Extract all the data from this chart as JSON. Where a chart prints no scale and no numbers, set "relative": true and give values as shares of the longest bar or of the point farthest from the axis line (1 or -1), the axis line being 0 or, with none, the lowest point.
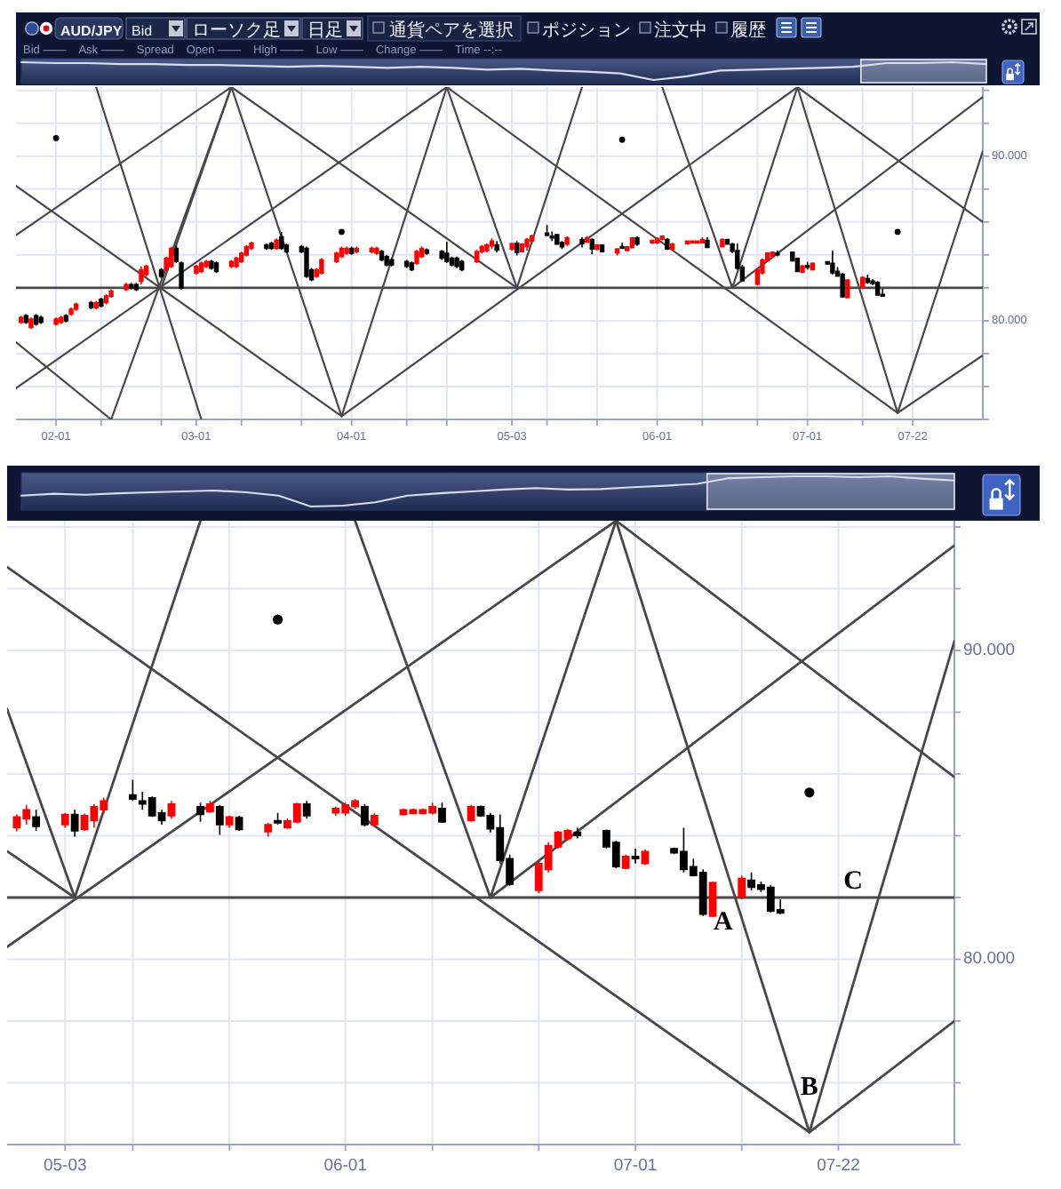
{
  "chart_data": [
    {
      "type": "line",
      "relative": true,
      "categories": [
        null,
        null,
        null,
        null,
        null,
        null,
        null,
        null,
        null,
        null,
        null,
        null,
        null,
        null,
        null,
        null,
        null,
        null,
        null,
        null,
        null,
        null,
        null,
        null,
        null,
        null,
        null,
        null,
        null,
        null
      ],
      "values": [
        1,
        0.95,
        0.95,
        0.89,
        0.89,
        0.84,
        0.84,
        0.79,
        0.74,
        0.79,
        0.74,
        0.68,
        0.74,
        0.68,
        0.58,
        0.63,
        0.53,
        0.47,
        0.37,
        0,
        0.21,
        0.53,
        0.58,
        0.63,
        0.68,
        0.74,
        0.95,
        0.95,
        1,
        0.89
      ],
      "color": "#d9dde8",
      "annotations": [
        "AUD/JPY",
        "Bid",
        "ローソク足",
        "日足",
        "通貨ペアを選択",
        "ポジション",
        "注文中",
        "履歴",
        "Bid ——",
        "Ask ——",
        "Spread",
        "Open ——",
        "High ——",
        "Low ——",
        "Change ——",
        "Time --:--"
      ]
    },
    {
      "type": "candlestick",
      "x": [
        "--01-25",
        "--01-26",
        "--01-27",
        "--01-28",
        "--01-29",
        "--02-01",
        "--02-02",
        "--02-03",
        "--02-04",
        "--02-05",
        "--02-08",
        "--02-09",
        "--02-10",
        "--02-11",
        "--02-12",
        "--02-15",
        "--02-16",
        "--02-17",
        "--02-18",
        "--02-19",
        "--02-22",
        "--02-23",
        "--02-24",
        "--02-25",
        "--02-26",
        "--03-01",
        "--03-02",
        "--03-03",
        "--03-04",
        "--03-05",
        "--03-08",
        "--03-09",
        "--03-10",
        "--03-11",
        "--03-12",
        "--03-15",
        "--03-16",
        "--03-17",
        "--03-18",
        "--03-19",
        "--03-22",
        "--03-23",
        "--03-24",
        "--03-25",
        "--03-26",
        "--03-29",
        "--03-30",
        "--03-31",
        "--04-01",
        "--04-02",
        "--04-05",
        "--04-06",
        "--04-07",
        "--04-08",
        "--04-09",
        "--04-12",
        "--04-13",
        "--04-14",
        "--04-15",
        "--04-16",
        "--04-19",
        "--04-20",
        "--04-21",
        "--04-22",
        "--04-23",
        "--04-26",
        "--04-27",
        "--04-28",
        "--04-29",
        "--04-30",
        "--05-03",
        "--05-04",
        "--05-05",
        "--05-06",
        "--05-07",
        "--05-10",
        "--05-11",
        "--05-12",
        "--05-13",
        "--05-14",
        "--05-17",
        "--05-18",
        "--05-19",
        "--05-20",
        "--05-21",
        "--05-24",
        "--05-25",
        "--05-26",
        "--05-27",
        "--05-28",
        "--05-31",
        "--06-01",
        "--06-02",
        "--06-03",
        "--06-04",
        "--06-07",
        "--06-08",
        "--06-09",
        "--06-10",
        "--06-11",
        "--06-14",
        "--06-15",
        "--06-16",
        "--06-17",
        "--06-18",
        "--06-21",
        "--06-22",
        "--06-23",
        "--06-24",
        "--06-25",
        "--06-28",
        "--06-29",
        "--06-30",
        "--07-01",
        "--07-02",
        "--07-05",
        "--07-06",
        "--07-07",
        "--07-08",
        "--07-09",
        "--07-12",
        "--07-13",
        "--07-14",
        "--07-15",
        "--07-16"
      ],
      "ohlc": [
        [
          79.9,
          80.3,
          79.8,
          80.2
        ],
        [
          80.3,
          80.4,
          79.8,
          79.9
        ],
        [
          79.6,
          80.2,
          79.5,
          80.1
        ],
        [
          80.3,
          80.4,
          79.7,
          79.8
        ],
        [
          80.2,
          80.3,
          79.8,
          79.9
        ],
        [
          79.8,
          80.2,
          79.7,
          80.1
        ],
        [
          79.9,
          80.3,
          79.8,
          80.2
        ],
        [
          80.3,
          80.4,
          79.9,
          80.0
        ],
        [
          80.4,
          80.8,
          80.3,
          80.7
        ],
        [
          80.7,
          81.1,
          80.6,
          81.0
        ],
        [
          81.1,
          81.2,
          80.7,
          80.8
        ],
        [
          80.8,
          81.2,
          80.7,
          81.1
        ],
        [
          81.3,
          81.4,
          80.8,
          80.9
        ],
        [
          81.1,
          81.6,
          81.0,
          81.5
        ],
        [
          81.5,
          81.9,
          81.4,
          81.8
        ],
        [
          81.9,
          82.3,
          81.8,
          82.2
        ],
        [
          82.2,
          82.3,
          81.9,
          82.0
        ],
        [
          82.2,
          82.3,
          81.8,
          81.9
        ],
        [
          82.4,
          83.3,
          82.2,
          83.1
        ],
        [
          82.8,
          83.4,
          82.7,
          83.3
        ],
        [
          83.1,
          83.2,
          82.6,
          82.7
        ],
        [
          83.1,
          83.9,
          83.0,
          83.8
        ],
        [
          83.3,
          84.5,
          83.2,
          84.4
        ],
        [
          84.4,
          84.6,
          83.5,
          83.6
        ],
        [
          83.5,
          83.6,
          81.9,
          82.0
        ],
        [
          82.9,
          83.4,
          82.8,
          83.3
        ],
        [
          83.0,
          83.6,
          82.9,
          83.5
        ],
        [
          83.3,
          83.7,
          83.2,
          83.6
        ],
        [
          83.6,
          83.7,
          83.1,
          83.2
        ],
        [
          83.5,
          83.6,
          82.9,
          83.0
        ],
        [
          83.3,
          83.7,
          83.2,
          83.6
        ],
        [
          83.3,
          83.9,
          83.2,
          83.8
        ],
        [
          83.6,
          84.2,
          83.5,
          84.1
        ],
        [
          84.0,
          84.6,
          83.9,
          84.5
        ],
        [
          84.4,
          84.8,
          84.3,
          84.7
        ],
        [
          84.6,
          84.7,
          84.3,
          84.4
        ],
        [
          84.7,
          84.8,
          84.3,
          84.4
        ],
        [
          84.4,
          85.0,
          84.3,
          84.9
        ],
        [
          85.1,
          85.4,
          84.3,
          84.4
        ],
        [
          84.6,
          84.7,
          84.1,
          84.2
        ],
        [
          84.5,
          84.6,
          84.1,
          84.2
        ],
        [
          84.4,
          84.5,
          82.6,
          82.7
        ],
        [
          83.1,
          83.2,
          82.4,
          82.5
        ],
        [
          82.7,
          83.2,
          82.6,
          83.1
        ],
        [
          82.9,
          83.8,
          82.8,
          83.7
        ],
        [
          83.6,
          84.2,
          83.5,
          84.1
        ],
        [
          83.9,
          84.5,
          83.8,
          84.4
        ],
        [
          84.1,
          84.5,
          84.0,
          84.4
        ],
        [
          84.4,
          84.5,
          84.0,
          84.1
        ],
        [
          84.2,
          84.5,
          84.1,
          84.4
        ],
        [
          84.2,
          84.5,
          84.1,
          84.4
        ],
        [
          84.1,
          84.5,
          84.0,
          84.4
        ],
        [
          84.2,
          84.3,
          83.6,
          83.7
        ],
        [
          83.9,
          84.0,
          83.3,
          83.4
        ],
        [
          83.7,
          83.8,
          83.3,
          83.4
        ],
        [
          83.6,
          83.7,
          83.2,
          83.3
        ],
        [
          83.5,
          83.6,
          83.0,
          83.1
        ],
        [
          83.5,
          84.3,
          83.4,
          84.2
        ],
        [
          83.9,
          84.5,
          83.8,
          84.4
        ],
        [
          84.3,
          84.4,
          84.0,
          84.1
        ],
        [
          84.2,
          84.3,
          83.7,
          83.8
        ],
        [
          84.1,
          84.8,
          83.5,
          83.6
        ],
        [
          83.8,
          83.9,
          83.3,
          83.4
        ],
        [
          83.8,
          83.9,
          83.2,
          83.3
        ],
        [
          83.6,
          83.7,
          83.0,
          83.1
        ],
        [
          83.6,
          84.3,
          83.5,
          84.2
        ],
        [
          84.2,
          84.6,
          84.1,
          84.5
        ],
        [
          84.26,
          84.69,
          84.14,
          84.61
        ],
        [
          84.55,
          85.0,
          84.36,
          84.84
        ],
        [
          84.61,
          84.84,
          84.16,
          84.3
        ],
        [
          84.36,
          84.74,
          84.26,
          84.69
        ],
        [
          84.69,
          84.84,
          83.97,
          84.16
        ],
        [
          84.2,
          84.72,
          84.16,
          84.65
        ],
        [
          84.49,
          85.03,
          84.26,
          84.94
        ],
        [
          84.84,
          85.23,
          84.74,
          85.13
        ],
        [
          85.32,
          85.81,
          85.13,
          85.19
        ],
        [
          85.13,
          85.42,
          84.84,
          85.03
        ],
        [
          85.23,
          85.27,
          84.61,
          84.65
        ],
        [
          84.74,
          84.84,
          84.36,
          84.49
        ],
        [
          84.65,
          85.13,
          84.55,
          85.03
        ],
        [
          84.94,
          85.07,
          84.45,
          84.69
        ],
        [
          84.78,
          85.13,
          84.74,
          85.03
        ],
        [
          84.94,
          85.0,
          84.03,
          84.36
        ],
        [
          84.36,
          84.65,
          84.26,
          84.61
        ],
        [
          84.59,
          84.65,
          84.16,
          84.2
        ],
        [
          84.13,
          84.42,
          83.97,
          84.36
        ],
        [
          84.49,
          84.74,
          84.36,
          84.42
        ],
        [
          84.26,
          84.55,
          84.22,
          84.49
        ],
        [
          84.45,
          85.07,
          84.4,
          85.03
        ],
        [
          85.03,
          85.13,
          84.55,
          84.65
        ],
        [
          84.74,
          84.94,
          84.65,
          84.88
        ],
        [
          84.74,
          85.07,
          84.65,
          85.0
        ],
        [
          84.94,
          85.19,
          84.88,
          85.13
        ],
        [
          84.94,
          85.03,
          84.3,
          84.36
        ],
        [
          84.36,
          84.74,
          84.3,
          84.65
        ],
        [
          84.69,
          84.88,
          84.65,
          84.84
        ],
        [
          84.72,
          84.88,
          84.69,
          84.84
        ],
        [
          84.72,
          84.88,
          84.69,
          84.84
        ],
        [
          84.74,
          85.07,
          84.69,
          84.94
        ],
        [
          84.88,
          85.07,
          84.42,
          84.45
        ],
        [
          84.49,
          85.0,
          84.45,
          84.94
        ],
        [
          84.94,
          84.98,
          84.61,
          84.65
        ],
        [
          84.65,
          84.74,
          84.11,
          84.22
        ],
        [
          84.26,
          84.69,
          83.1,
          83.2
        ],
        [
          83.26,
          83.39,
          82.37,
          82.43
        ],
        [
          82.23,
          83.2,
          82.14,
          83.1
        ],
        [
          82.91,
          83.78,
          82.81,
          83.68
        ],
        [
          83.64,
          84.16,
          83.58,
          84.11
        ],
        [
          83.91,
          84.22,
          83.85,
          84.16
        ],
        [
          84.11,
          84.26,
          83.91,
          84.01
        ],
        [
          84.16,
          84.2,
          83.58,
          83.64
        ],
        [
          83.78,
          83.84,
          82.95,
          83.0
        ],
        [
          82.95,
          83.39,
          82.91,
          83.33
        ],
        [
          83.33,
          83.58,
          83.1,
          83.26
        ],
        [
          83.1,
          83.55,
          83.05,
          83.49
        ],
        [
          83.58,
          83.62,
          83.4,
          83.45
        ],
        [
          83.49,
          84.26,
          82.81,
          82.91
        ],
        [
          83.0,
          83.26,
          82.68,
          82.71
        ],
        [
          82.81,
          82.91,
          81.4,
          81.46
        ],
        [
          81.4,
          82.52,
          81.36,
          82.48
        ],
        [
          82.04,
          82.71,
          81.94,
          82.62
        ],
        [
          82.56,
          82.81,
          82.23,
          82.33
        ],
        [
          82.41,
          82.52,
          82.17,
          82.27
        ],
        [
          82.33,
          82.41,
          81.52,
          81.56
        ],
        [
          81.6,
          81.94,
          81.46,
          81.5
        ]
      ],
      "colors": [
        "#ff0000",
        "#000000",
        "#ff0000",
        "#000000",
        "#000000",
        "#ff0000",
        "#ff0000",
        "#000000",
        "#ff0000",
        "#ff0000",
        "#000000",
        "#ff0000",
        "#000000",
        "#ff0000",
        "#ff0000",
        "#ff0000",
        "#000000",
        "#000000",
        "#ff0000",
        "#ff0000",
        "#000000",
        "#ff0000",
        "#ff0000",
        "#000000",
        "#000000",
        "#ff0000",
        "#ff0000",
        "#ff0000",
        "#000000",
        "#000000",
        "#ff0000",
        "#ff0000",
        "#ff0000",
        "#ff0000",
        "#ff0000",
        "#000000",
        "#000000",
        "#ff0000",
        "#000000",
        "#000000",
        "#000000",
        "#000000",
        "#000000",
        "#ff0000",
        "#ff0000",
        "#ff0000",
        "#ff0000",
        "#ff0000",
        "#000000",
        "#ff0000",
        "#ff0000",
        "#ff0000",
        "#000000",
        "#000000",
        "#000000",
        "#000000",
        "#000000",
        "#ff0000",
        "#ff0000",
        "#000000",
        "#000000",
        "#000000",
        "#000000",
        "#000000",
        "#000000",
        "#ff0000",
        "#ff0000",
        "#ff0000",
        "#ff0000",
        "#000000",
        "#ff0000",
        "#000000",
        "#ff0000",
        "#ff0000",
        "#ff0000",
        "#000000",
        "#000000",
        "#000000",
        "#000000",
        "#ff0000",
        "#000000",
        "#ff0000",
        "#000000",
        "#ff0000",
        "#000000",
        "#ff0000",
        "#000000",
        "#ff0000",
        "#ff0000",
        "#000000",
        "#ff0000",
        "#ff0000",
        "#ff0000",
        "#000000",
        "#ff0000",
        "#ff0000",
        "#ff0000",
        "#ff0000",
        "#ff0000",
        "#000000",
        "#ff0000",
        "#000000",
        "#000000",
        "#000000",
        "#000000",
        "#ff0000",
        "#ff0000",
        "#ff0000",
        "#ff0000",
        "#000000",
        "#000000",
        "#000000",
        "#ff0000",
        "#000000",
        "#ff0000",
        "#000000",
        "#000000",
        "#000000",
        "#000000",
        "#ff0000",
        "#ff0000",
        "#000000",
        "#000000",
        "#000000",
        "#000000"
      ],
      "series": [
        {
          "type": "line",
          "x": [
            "--01-24",
            "--03-30"
          ],
          "values": [
            88.2,
            74.2
          ],
          "color": "#484848"
        },
        {
          "type": "line",
          "x": [
            "--01-24",
            "--03-08"
          ],
          "values": [
            85.2,
            94.2
          ],
          "color": "#484848"
        },
        {
          "type": "line",
          "x": [
            "--01-24",
            "--04-20"
          ],
          "values": [
            75.9,
            94.2
          ],
          "color": "#484848"
        },
        {
          "type": "line",
          "x": [
            "--01-24",
            "--02-12"
          ],
          "values": [
            78.7,
            74.0
          ],
          "color": "#484848"
        },
        {
          "type": "line",
          "x": [
            "--02-09",
            "--03-02"
          ],
          "values": [
            94.2,
            74.0
          ],
          "color": "#484848"
        },
        {
          "type": "line",
          "x": [
            "--02-12",
            "--03-08"
          ],
          "values": [
            74.0,
            94.2
          ],
          "color": "#484848"
        },
        {
          "type": "line",
          "x": [
            "--02-22",
            "--03-08"
          ],
          "values": [
            82.0,
            94.2
          ],
          "color": "#484848"
        },
        {
          "type": "line",
          "x": [
            "--03-08",
            "--03-30"
          ],
          "values": [
            94.2,
            74.2
          ],
          "color": "#484848"
        },
        {
          "type": "line",
          "x": [
            "--03-08",
            "--05-04"
          ],
          "values": [
            94.2,
            82.0
          ],
          "color": "#484848"
        },
        {
          "type": "line",
          "x": [
            "--03-30",
            "--04-20"
          ],
          "values": [
            74.2,
            94.2
          ],
          "color": "#484848"
        },
        {
          "type": "line",
          "x": [
            "--03-30",
            "--06-29"
          ],
          "values": [
            74.2,
            94.2
          ],
          "color": "#484848"
        },
        {
          "type": "line",
          "x": [
            "--04-20",
            "--05-04"
          ],
          "values": [
            94.2,
            82.0
          ],
          "color": "#484848"
        },
        {
          "type": "line",
          "x": [
            "--04-20",
            "--07-19"
          ],
          "values": [
            94.2,
            74.4
          ],
          "color": "#484848"
        },
        {
          "type": "line",
          "x": [
            "--05-04",
            "--05-17"
          ],
          "values": [
            82.0,
            94.2
          ],
          "color": "#484848"
        },
        {
          "type": "line",
          "x": [
            "--06-02",
            "--06-16"
          ],
          "values": [
            94.2,
            82.0
          ],
          "color": "#484848"
        },
        {
          "type": "line",
          "x": [
            "--06-16",
            "--06-29"
          ],
          "values": [
            82.0,
            94.2
          ],
          "color": "#484848"
        },
        {
          "type": "line",
          "x": [
            "--06-16",
            "--08-05"
          ],
          "values": [
            82.0,
            93.6
          ],
          "color": "#484848"
        },
        {
          "type": "line",
          "x": [
            "--06-29",
            "--07-19"
          ],
          "values": [
            94.2,
            74.4
          ],
          "color": "#484848"
        },
        {
          "type": "line",
          "x": [
            "--06-29",
            "--08-05"
          ],
          "values": [
            94.2,
            86.0
          ],
          "color": "#484848"
        },
        {
          "type": "line",
          "x": [
            "--07-19",
            "--08-05"
          ],
          "values": [
            74.4,
            90.3
          ],
          "color": "#484848"
        },
        {
          "type": "line",
          "x": [
            "--07-19",
            "--08-05"
          ],
          "values": [
            74.4,
            77.9
          ],
          "color": "#484848"
        },
        {
          "type": "scatter",
          "x": [
            "--02-01",
            "--03-30",
            "--05-25",
            "--07-19"
          ],
          "values": [
            91.1,
            85.4,
            91.0,
            85.4
          ],
          "color": "#000000",
          "marker": "circle"
        }
      ],
      "xlim": [
        "--01-24",
        "--08-05"
      ],
      "ylim": [
        74,
        94.2
      ],
      "xticks": [
        {
          "value": "--02-01",
          "label": "02-01"
        },
        {
          "value": "--02-10",
          "label": null
        },
        {
          "value": "--02-22",
          "label": null
        },
        {
          "value": "--03-01",
          "label": "03-01"
        },
        {
          "value": "--03-10",
          "label": null
        },
        {
          "value": "--03-22",
          "label": null
        },
        {
          "value": "--04-01",
          "label": "04-01"
        },
        {
          "value": "--04-12",
          "label": null
        },
        {
          "value": "--04-20",
          "label": null
        },
        {
          "value": "--05-03",
          "label": "05-03"
        },
        {
          "value": "--05-10",
          "label": null
        },
        {
          "value": "--05-20",
          "label": null
        },
        {
          "value": "--06-01",
          "label": "06-01"
        },
        {
          "value": "--06-10",
          "label": null
        },
        {
          "value": "--06-21",
          "label": null
        },
        {
          "value": "--07-01",
          "label": "07-01"
        },
        {
          "value": "--07-12",
          "label": null
        },
        {
          "value": "--07-22",
          "label": "07-22"
        }
      ],
      "yticks": [
        {
          "value": 74,
          "label": null
        },
        {
          "value": 76,
          "label": null
        },
        {
          "value": 78,
          "label": null
        },
        {
          "value": 80,
          "label": "80.000"
        },
        {
          "value": 82,
          "label": null
        },
        {
          "value": 84,
          "label": null
        },
        {
          "value": 86,
          "label": null
        },
        {
          "value": 88,
          "label": null
        },
        {
          "value": 90,
          "label": "90.000"
        },
        {
          "value": 92,
          "label": null
        },
        {
          "value": 94,
          "label": null
        }
      ],
      "grid": true,
      "ref_lines": [
        {
          "axis": "y",
          "value": 82,
          "color": "#484848"
        }
      ]
    },
    {
      "type": "line",
      "relative": true,
      "categories": [
        null,
        null,
        null,
        null,
        null,
        null,
        null,
        null,
        null,
        null,
        null,
        null,
        null,
        null,
        null,
        null,
        null,
        null,
        null,
        null,
        null,
        null,
        null,
        null,
        null,
        null,
        null,
        null,
        null,
        null
      ],
      "values": [
        0.36,
        0.42,
        0.39,
        0.44,
        0.47,
        0.5,
        0.53,
        0.47,
        0.36,
        0,
        0.03,
        0.14,
        0.36,
        0.44,
        0.5,
        0.56,
        0.61,
        0.56,
        0.58,
        0.64,
        0.69,
        0.75,
        0.94,
        0.97,
        1,
        1,
        0.97,
        1,
        0.92,
        0.86
      ],
      "color": "#d9dde8"
    },
    {
      "type": "candlestick",
      "x": [
        "--04-28",
        "--04-29",
        "--04-30",
        "--05-03",
        "--05-04",
        "--05-05",
        "--05-06",
        "--05-07",
        "--05-10",
        "--05-11",
        "--05-12",
        "--05-13",
        "--05-14",
        "--05-17",
        "--05-18",
        "--05-19",
        "--05-20",
        "--05-21",
        "--05-24",
        "--05-25",
        "--05-26",
        "--05-27",
        "--05-28",
        "--05-31",
        "--06-01",
        "--06-02",
        "--06-03",
        "--06-04",
        "--06-07",
        "--06-08",
        "--06-09",
        "--06-10",
        "--06-11",
        "--06-14",
        "--06-15",
        "--06-16",
        "--06-17",
        "--06-18",
        "--06-21",
        "--06-22",
        "--06-23",
        "--06-24",
        "--06-25",
        "--06-28",
        "--06-29",
        "--06-30",
        "--07-01",
        "--07-02",
        "--07-05",
        "--07-06",
        "--07-07",
        "--07-08",
        "--07-09",
        "--07-12",
        "--07-13",
        "--07-14",
        "--07-15",
        "--07-16"
      ],
      "ohlc": [
        [
          84.26,
          84.69,
          84.14,
          84.61
        ],
        [
          84.55,
          85.0,
          84.36,
          84.84
        ],
        [
          84.61,
          84.84,
          84.16,
          84.3
        ],
        [
          84.36,
          84.74,
          84.26,
          84.69
        ],
        [
          84.69,
          84.84,
          83.97,
          84.16
        ],
        [
          84.2,
          84.72,
          84.16,
          84.65
        ],
        [
          84.49,
          85.03,
          84.26,
          84.94
        ],
        [
          84.84,
          85.23,
          84.74,
          85.13
        ],
        [
          85.32,
          85.81,
          85.13,
          85.19
        ],
        [
          85.13,
          85.42,
          84.84,
          85.03
        ],
        [
          85.23,
          85.27,
          84.61,
          84.65
        ],
        [
          84.74,
          84.84,
          84.36,
          84.49
        ],
        [
          84.65,
          85.13,
          84.55,
          85.03
        ],
        [
          84.94,
          85.07,
          84.45,
          84.69
        ],
        [
          84.78,
          85.13,
          84.74,
          85.03
        ],
        [
          84.94,
          85.0,
          84.03,
          84.36
        ],
        [
          84.36,
          84.65,
          84.26,
          84.61
        ],
        [
          84.59,
          84.65,
          84.16,
          84.2
        ],
        [
          84.13,
          84.42,
          83.97,
          84.36
        ],
        [
          84.49,
          84.74,
          84.36,
          84.42
        ],
        [
          84.26,
          84.55,
          84.22,
          84.49
        ],
        [
          84.45,
          85.07,
          84.4,
          85.03
        ],
        [
          85.03,
          85.13,
          84.55,
          84.65
        ],
        [
          84.74,
          84.94,
          84.65,
          84.88
        ],
        [
          84.74,
          85.07,
          84.65,
          85.0
        ],
        [
          84.94,
          85.19,
          84.88,
          85.13
        ],
        [
          84.94,
          85.03,
          84.3,
          84.36
        ],
        [
          84.36,
          84.74,
          84.3,
          84.65
        ],
        [
          84.69,
          84.88,
          84.65,
          84.84
        ],
        [
          84.72,
          84.88,
          84.69,
          84.84
        ],
        [
          84.72,
          84.88,
          84.69,
          84.84
        ],
        [
          84.74,
          85.07,
          84.69,
          84.94
        ],
        [
          84.88,
          85.07,
          84.42,
          84.45
        ],
        [
          84.49,
          85.0,
          84.45,
          84.94
        ],
        [
          84.94,
          84.98,
          84.61,
          84.65
        ],
        [
          84.65,
          84.74,
          84.11,
          84.22
        ],
        [
          84.26,
          84.69,
          83.1,
          83.2
        ],
        [
          83.26,
          83.39,
          82.37,
          82.43
        ],
        [
          82.23,
          83.2,
          82.14,
          83.1
        ],
        [
          82.91,
          83.78,
          82.81,
          83.68
        ],
        [
          83.64,
          84.16,
          83.58,
          84.11
        ],
        [
          83.91,
          84.22,
          83.85,
          84.16
        ],
        [
          84.11,
          84.26,
          83.91,
          84.01
        ],
        [
          84.16,
          84.2,
          83.58,
          83.64
        ],
        [
          83.78,
          83.84,
          82.95,
          83.0
        ],
        [
          82.95,
          83.39,
          82.91,
          83.33
        ],
        [
          83.33,
          83.58,
          83.1,
          83.26
        ],
        [
          83.1,
          83.55,
          83.05,
          83.49
        ],
        [
          83.58,
          83.62,
          83.4,
          83.45
        ],
        [
          83.49,
          84.26,
          82.81,
          82.91
        ],
        [
          83.0,
          83.26,
          82.68,
          82.71
        ],
        [
          82.81,
          82.91,
          81.4,
          81.46
        ],
        [
          81.4,
          82.52,
          81.36,
          82.48
        ],
        [
          82.04,
          82.71,
          81.94,
          82.62
        ],
        [
          82.56,
          82.81,
          82.23,
          82.33
        ],
        [
          82.41,
          82.52,
          82.17,
          82.27
        ],
        [
          82.33,
          82.41,
          81.52,
          81.56
        ],
        [
          81.6,
          81.94,
          81.46,
          81.5
        ]
      ],
      "colors": [
        "#ff0000",
        "#ff0000",
        "#000000",
        "#ff0000",
        "#000000",
        "#ff0000",
        "#ff0000",
        "#ff0000",
        "#000000",
        "#000000",
        "#000000",
        "#000000",
        "#ff0000",
        "#000000",
        "#ff0000",
        "#000000",
        "#ff0000",
        "#000000",
        "#ff0000",
        "#000000",
        "#ff0000",
        "#ff0000",
        "#000000",
        "#ff0000",
        "#ff0000",
        "#ff0000",
        "#000000",
        "#ff0000",
        "#ff0000",
        "#ff0000",
        "#ff0000",
        "#ff0000",
        "#000000",
        "#ff0000",
        "#000000",
        "#000000",
        "#000000",
        "#000000",
        "#ff0000",
        "#ff0000",
        "#ff0000",
        "#ff0000",
        "#000000",
        "#000000",
        "#000000",
        "#ff0000",
        "#000000",
        "#ff0000",
        "#000000",
        "#000000",
        "#000000",
        "#000000",
        "#ff0000",
        "#ff0000",
        "#000000",
        "#000000",
        "#000000",
        "#000000"
      ],
      "series": [
        {
          "type": "line",
          "x": [
            "--04-27",
            "--05-04"
          ],
          "values": [
            88.1,
            82.0
          ],
          "color": "#484848"
        },
        {
          "type": "line",
          "x": [
            "--04-27",
            "--05-04"
          ],
          "values": [
            83.5,
            82.0
          ],
          "color": "#484848"
        },
        {
          "type": "line",
          "x": [
            "--04-27",
            "--06-29"
          ],
          "values": [
            80.4,
            94.2
          ],
          "color": "#484848"
        },
        {
          "type": "line",
          "x": [
            "--05-04",
            "--05-17"
          ],
          "values": [
            82.0,
            94.2
          ],
          "color": "#484848"
        },
        {
          "type": "line",
          "x": [
            "--04-27",
            "--07-19"
          ],
          "values": [
            92.7,
            74.4
          ],
          "color": "#484848"
        },
        {
          "type": "line",
          "x": [
            "--06-02",
            "--06-16"
          ],
          "values": [
            94.2,
            82.0
          ],
          "color": "#484848"
        },
        {
          "type": "line",
          "x": [
            "--06-16",
            "--06-29"
          ],
          "values": [
            82.0,
            94.2
          ],
          "color": "#484848"
        },
        {
          "type": "line",
          "x": [
            "--06-16",
            "--08-03"
          ],
          "values": [
            82.0,
            93.4
          ],
          "color": "#484848"
        },
        {
          "type": "line",
          "x": [
            "--06-29",
            "--07-19"
          ],
          "values": [
            94.2,
            74.4
          ],
          "color": "#484848"
        },
        {
          "type": "line",
          "x": [
            "--06-29",
            "--08-03"
          ],
          "values": [
            94.2,
            85.9
          ],
          "color": "#484848"
        },
        {
          "type": "line",
          "x": [
            "--07-19",
            "--08-03"
          ],
          "values": [
            74.4,
            90.3
          ],
          "color": "#484848"
        },
        {
          "type": "line",
          "x": [
            "--07-19",
            "--08-03"
          ],
          "values": [
            74.4,
            78.0
          ],
          "color": "#484848"
        },
        {
          "type": "scatter",
          "x": [
            "--05-25",
            "--07-19"
          ],
          "values": [
            91.0,
            85.4
          ],
          "color": "#000000",
          "marker": "circle"
        }
      ],
      "xlim": [
        "--04-27",
        "--08-03"
      ],
      "ylim": [
        74,
        94.2
      ],
      "xticks": [
        {
          "value": "--05-03",
          "label": "05-03"
        },
        {
          "value": "--05-10",
          "label": null
        },
        {
          "value": "--05-20",
          "label": null
        },
        {
          "value": "--06-01",
          "label": "06-01"
        },
        {
          "value": "--06-10",
          "label": null
        },
        {
          "value": "--06-21",
          "label": null
        },
        {
          "value": "--07-01",
          "label": "07-01"
        },
        {
          "value": "--07-12",
          "label": null
        },
        {
          "value": "--07-22",
          "label": "07-22"
        }
      ],
      "yticks": [
        {
          "value": 74,
          "label": null
        },
        {
          "value": 76,
          "label": null
        },
        {
          "value": 78,
          "label": null
        },
        {
          "value": 80,
          "label": "80.000"
        },
        {
          "value": 82,
          "label": null
        },
        {
          "value": 84,
          "label": null
        },
        {
          "value": 86,
          "label": null
        },
        {
          "value": 88,
          "label": null
        },
        {
          "value": 90,
          "label": "90.000"
        },
        {
          "value": 92,
          "label": null
        },
        {
          "value": 94,
          "label": null
        }
      ],
      "grid": true,
      "ref_lines": [
        {
          "axis": "y",
          "value": 82,
          "color": "#484848"
        }
      ],
      "annotations": [
        {
          "text": "A",
          "x": "--07-11",
          "y": 82.0
        },
        {
          "text": "B",
          "x": "--07-19",
          "y": 74.4
        },
        {
          "text": "C",
          "x": "--07-25",
          "y": 82.0
        }
      ]
    }
  ]
}
